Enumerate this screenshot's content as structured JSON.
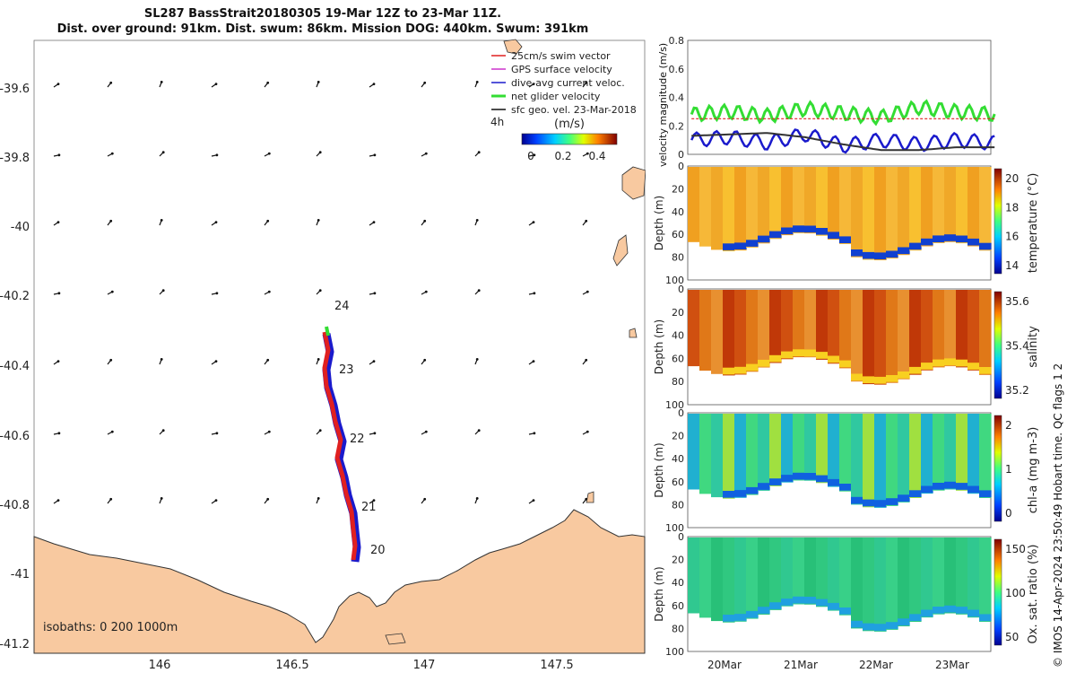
{
  "title": {
    "line1": "SL287 BassStrait20180305 19-Mar 12Z to 23-Mar 11Z.",
    "line2": "Dist. over ground: 91km. Dist. swum: 86km. Mission DOG: 440km. Swum: 391km"
  },
  "map": {
    "lat_ticks": [
      "-39.6",
      "-39.8",
      "-40",
      "-40.2",
      "-40.4",
      "-40.6",
      "-40.8",
      "-41",
      "-41.2"
    ],
    "lon_ticks": [
      "146",
      "146.5",
      "147",
      "147.5"
    ],
    "day_labels": [
      "24",
      "23",
      "22",
      "21",
      "20"
    ],
    "isobaths": "isobaths: 0   200  1000m",
    "interval": "4h",
    "legend": [
      {
        "label": "25cm/s swim vector",
        "color": "#e02020"
      },
      {
        "label": "GPS surface velocity",
        "color": "#cc33cc"
      },
      {
        "label": "dive-avg current veloc.",
        "color": "#1a1acc"
      },
      {
        "label": "net glider velocity",
        "color": "#33dd33"
      },
      {
        "label": "sfc geo. vel. 23-Mar-2018",
        "color": "#111111"
      }
    ],
    "colorbar": {
      "label": "(m/s)",
      "ticks": [
        "0",
        "0.2",
        "0.4"
      ]
    }
  },
  "velocity_panel": {
    "ylabel": "velocity magnitude (m/s)",
    "yticks": [
      "0",
      "0.2",
      "0.4",
      "0.6",
      "0.8"
    ],
    "ylim": [
      0,
      0.8
    ]
  },
  "sections": [
    {
      "name": "temperature",
      "label": "temperature (°C)",
      "ticks": [
        "20",
        "18",
        "16",
        "14"
      ]
    },
    {
      "name": "salinity",
      "label": "salinity",
      "ticks": [
        "35.6",
        "35.4",
        "35.2"
      ]
    },
    {
      "name": "chl",
      "label": "chl-a (mg m-3)",
      "ticks": [
        "2",
        "1",
        "0"
      ]
    },
    {
      "name": "oxygen",
      "label": "Ox. sat. ratio (%)",
      "ticks": [
        "150",
        "100",
        "50"
      ]
    }
  ],
  "depth_label": "Depth (m)",
  "depth_ticks": [
    "0",
    "20",
    "40",
    "60",
    "80",
    "100"
  ],
  "time_ticks": [
    "20Mar",
    "21Mar",
    "22Mar",
    "23Mar"
  ],
  "credit": "© IMOS 14-Apr-2024 23:50:49 Hobart time. QC flags 1  2",
  "chart_data": {
    "type": "line",
    "title": "SL287 BassStrait20180305 19-Mar 12Z to 23-Mar 11Z.",
    "ylabel": "velocity magnitude (m/s)",
    "ylim": [
      0,
      0.8
    ],
    "x_days": [
      19.5,
      20,
      20.5,
      21,
      21.5,
      22,
      22.5,
      23,
      23.5
    ],
    "series": [
      {
        "name": "net glider velocity",
        "values": [
          0.28,
          0.3,
          0.27,
          0.32,
          0.29,
          0.26,
          0.33,
          0.3,
          0.28
        ]
      },
      {
        "name": "25cm/s swim vector",
        "values": [
          0.25,
          0.25,
          0.25,
          0.25,
          0.25,
          0.25,
          0.25,
          0.25,
          0.25
        ]
      },
      {
        "name": "dive-avg current veloc.",
        "values": [
          0.1,
          0.12,
          0.08,
          0.14,
          0.06,
          0.1,
          0.07,
          0.1,
          0.08
        ]
      },
      {
        "name": "sfc geo. vel.",
        "values": [
          0.13,
          0.14,
          0.15,
          0.12,
          0.07,
          0.03,
          0.03,
          0.05,
          0.05
        ]
      }
    ]
  }
}
